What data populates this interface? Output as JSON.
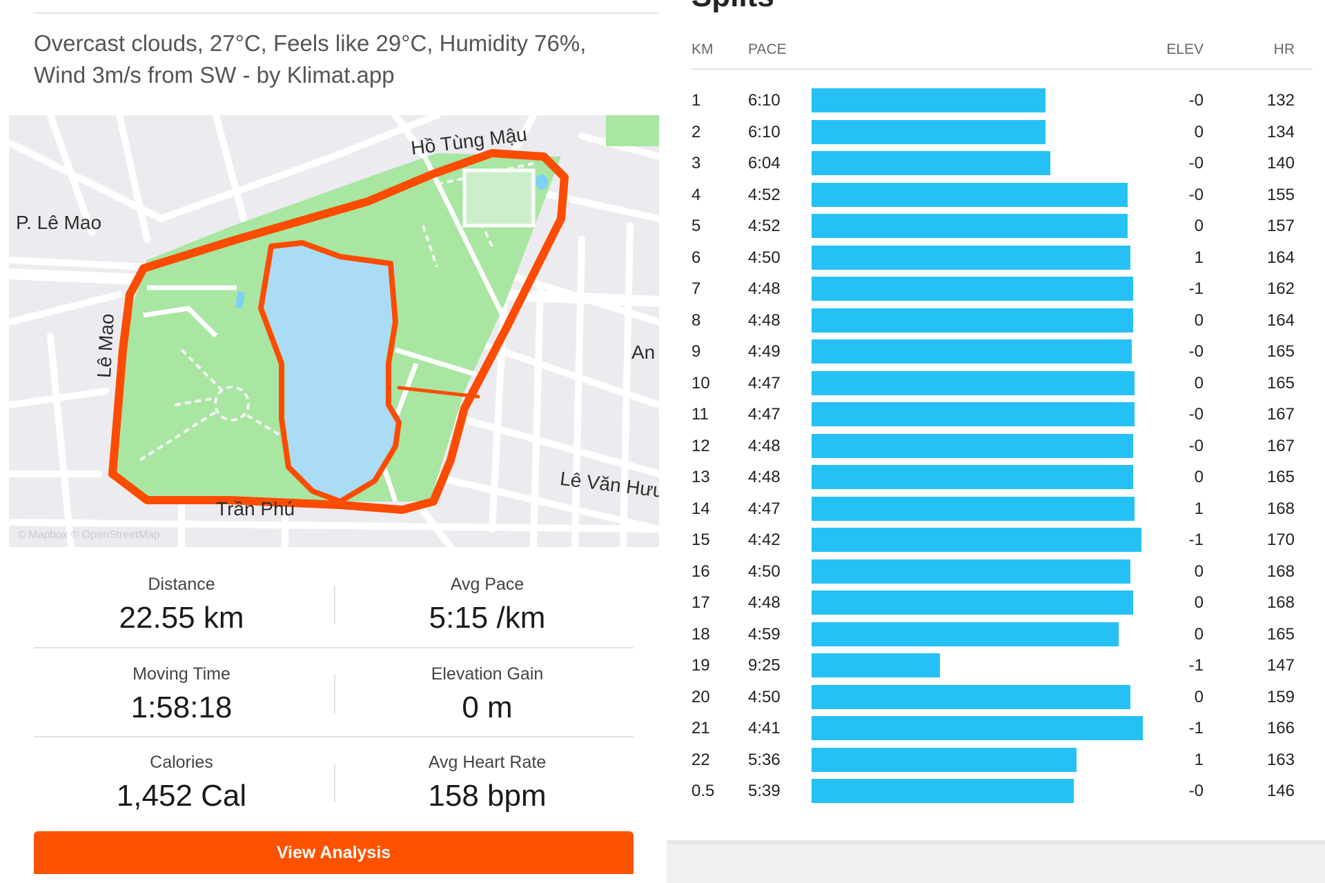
{
  "weather_text": "Overcast clouds, 27°C, Feels like 29°C, Humidity 76%, Wind 3m/s from SW - by Klimat.app",
  "map": {
    "labels": {
      "le_mao_h": "P. Lê Mao",
      "le_mao_v": "Lê Mao",
      "ho_tung_mau": "Hồ Tùng Mậu",
      "an": "An",
      "le_van_huu": "Lê Văn Hưu",
      "tran_phu": "Trần Phú"
    },
    "attribution": "© Mapbox © OpenStreetMap",
    "colors": {
      "route": "#fc4c02",
      "park": "#a8e6a2",
      "water": "#aadcf5",
      "road": "#ffffff"
    }
  },
  "stats": {
    "distance": {
      "label": "Distance",
      "value": "22.55 km"
    },
    "avg_pace": {
      "label": "Avg Pace",
      "value": "5:15 /km"
    },
    "moving_time": {
      "label": "Moving Time",
      "value": "1:58:18"
    },
    "elevation_gain": {
      "label": "Elevation Gain",
      "value": "0 m"
    },
    "calories": {
      "label": "Calories",
      "value": "1,452 Cal"
    },
    "avg_heart_rate": {
      "label": "Avg Heart Rate",
      "value": "158 bpm"
    }
  },
  "view_analysis_label": "View Analysis",
  "splits": {
    "title": "Splits",
    "headers": {
      "km": "KM",
      "pace": "PACE",
      "elev": "ELEV",
      "hr": "HR"
    },
    "bar_color": "#25c1f5",
    "rows": [
      {
        "km": "1",
        "pace": "6:10",
        "elev": "-0",
        "hr": "132",
        "pace_sec": 370
      },
      {
        "km": "2",
        "pace": "6:10",
        "elev": "0",
        "hr": "134",
        "pace_sec": 370
      },
      {
        "km": "3",
        "pace": "6:04",
        "elev": "-0",
        "hr": "140",
        "pace_sec": 364
      },
      {
        "km": "4",
        "pace": "4:52",
        "elev": "-0",
        "hr": "155",
        "pace_sec": 292
      },
      {
        "km": "5",
        "pace": "4:52",
        "elev": "0",
        "hr": "157",
        "pace_sec": 292
      },
      {
        "km": "6",
        "pace": "4:50",
        "elev": "1",
        "hr": "164",
        "pace_sec": 290
      },
      {
        "km": "7",
        "pace": "4:48",
        "elev": "-1",
        "hr": "162",
        "pace_sec": 288
      },
      {
        "km": "8",
        "pace": "4:48",
        "elev": "0",
        "hr": "164",
        "pace_sec": 288
      },
      {
        "km": "9",
        "pace": "4:49",
        "elev": "-0",
        "hr": "165",
        "pace_sec": 289
      },
      {
        "km": "10",
        "pace": "4:47",
        "elev": "0",
        "hr": "165",
        "pace_sec": 287
      },
      {
        "km": "11",
        "pace": "4:47",
        "elev": "-0",
        "hr": "167",
        "pace_sec": 287
      },
      {
        "km": "12",
        "pace": "4:48",
        "elev": "-0",
        "hr": "167",
        "pace_sec": 288
      },
      {
        "km": "13",
        "pace": "4:48",
        "elev": "0",
        "hr": "165",
        "pace_sec": 288
      },
      {
        "km": "14",
        "pace": "4:47",
        "elev": "1",
        "hr": "168",
        "pace_sec": 287
      },
      {
        "km": "15",
        "pace": "4:42",
        "elev": "-1",
        "hr": "170",
        "pace_sec": 282
      },
      {
        "km": "16",
        "pace": "4:50",
        "elev": "0",
        "hr": "168",
        "pace_sec": 290
      },
      {
        "km": "17",
        "pace": "4:48",
        "elev": "0",
        "hr": "168",
        "pace_sec": 288
      },
      {
        "km": "18",
        "pace": "4:59",
        "elev": "0",
        "hr": "165",
        "pace_sec": 299
      },
      {
        "km": "19",
        "pace": "9:25",
        "elev": "-1",
        "hr": "147",
        "pace_sec": 565
      },
      {
        "km": "20",
        "pace": "4:50",
        "elev": "0",
        "hr": "159",
        "pace_sec": 290
      },
      {
        "km": "21",
        "pace": "4:41",
        "elev": "-1",
        "hr": "166",
        "pace_sec": 281
      },
      {
        "km": "22",
        "pace": "5:36",
        "elev": "1",
        "hr": "163",
        "pace_sec": 336
      },
      {
        "km": "0.5",
        "pace": "5:39",
        "elev": "-0",
        "hr": "146",
        "pace_sec": 339
      }
    ]
  }
}
